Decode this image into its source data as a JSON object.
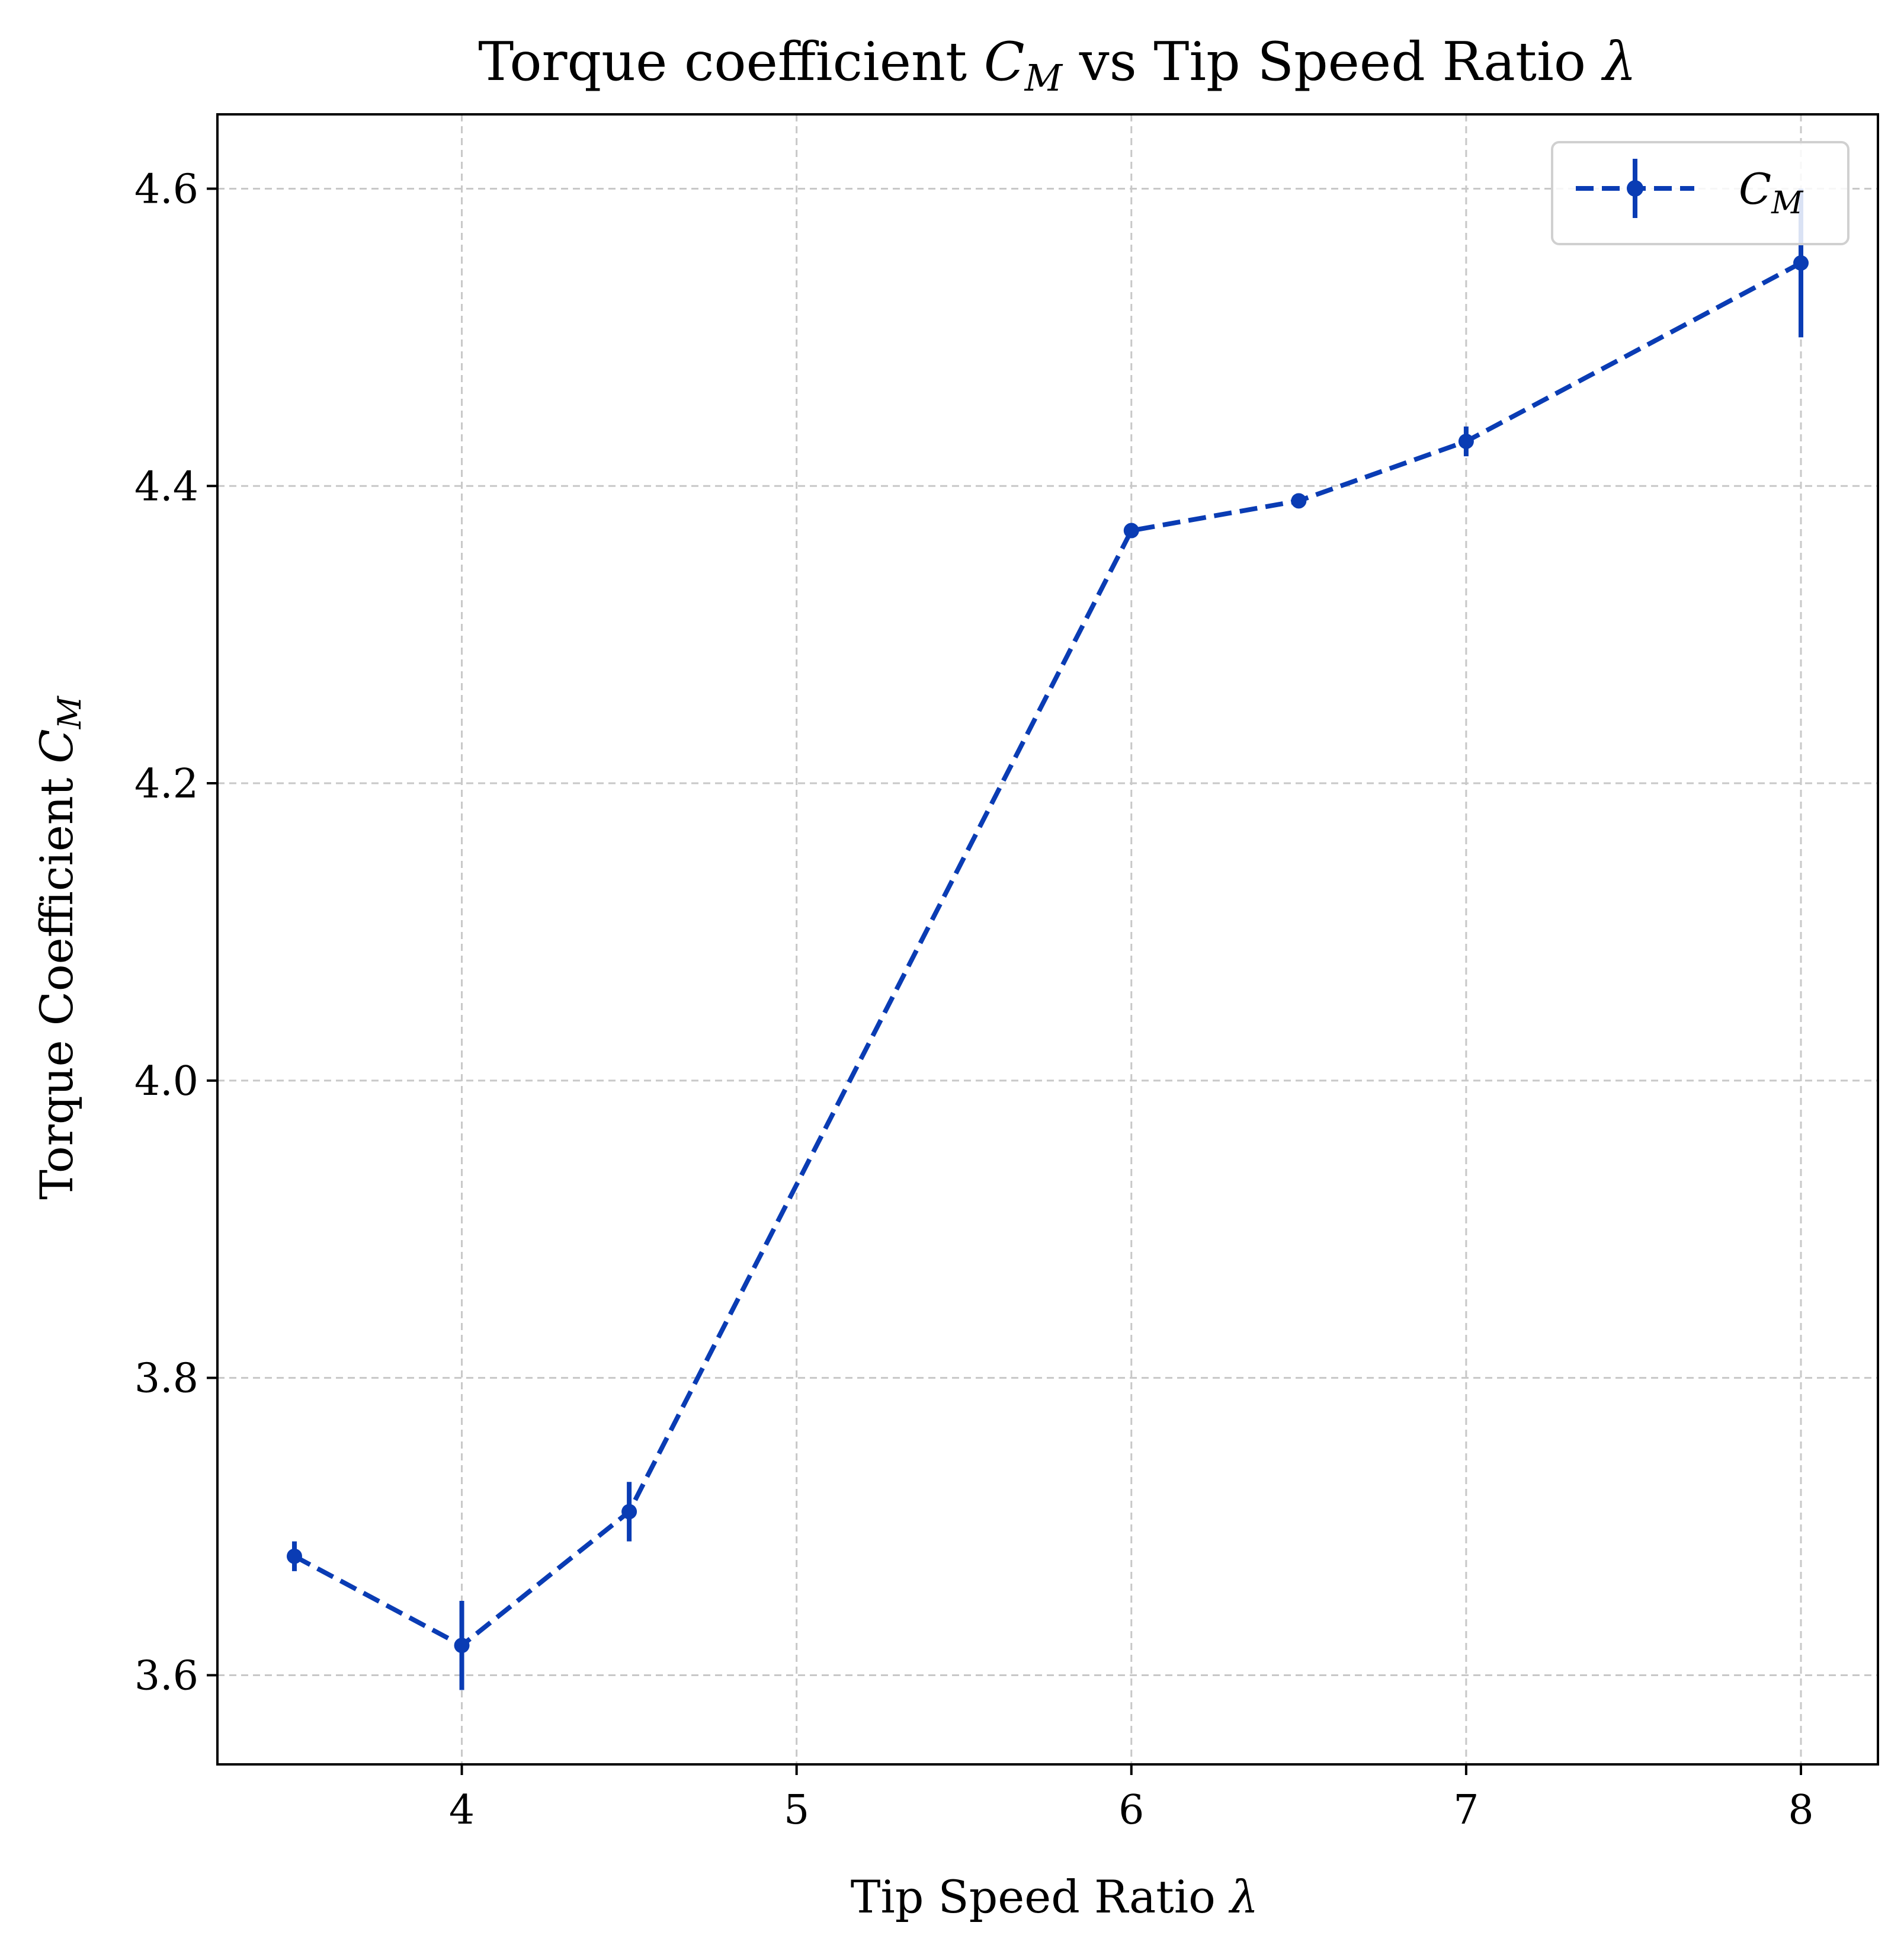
{
  "chart_data": {
    "type": "line",
    "title": "Torque coefficient C_M vs Tip Speed Ratio λ",
    "xlabel": "Tip Speed Ratio λ",
    "ylabel": "Torque Coefficient C_M",
    "xlim": [
      3.27,
      8.23
    ],
    "ylim": [
      3.54,
      4.65
    ],
    "xticks": [
      4,
      5,
      6,
      7,
      8
    ],
    "yticks": [
      3.6,
      3.8,
      4.0,
      4.2,
      4.4,
      4.6
    ],
    "grid": true,
    "legend_position": "top-right",
    "series": [
      {
        "name": "C_M",
        "color": "#0a3cb4",
        "line_style": "dashed",
        "marker": "circle",
        "x": [
          3.5,
          4.0,
          4.5,
          6.0,
          6.5,
          7.0,
          8.0
        ],
        "y": [
          3.68,
          3.62,
          3.71,
          4.37,
          4.39,
          4.43,
          4.55
        ],
        "yerr": [
          0.01,
          0.03,
          0.02,
          0.005,
          0.005,
          0.01,
          0.05
        ]
      }
    ]
  },
  "labels": {
    "title_main": "Torque coefficient ",
    "title_sym": "C",
    "title_sub": "M",
    "title_rest": " vs Tip Speed Ratio ",
    "title_lambda": "λ",
    "xlabel_main": "Tip Speed Ratio ",
    "xlabel_lambda": "λ",
    "ylabel_main": "Torque Coefficient ",
    "ylabel_sym": "C",
    "ylabel_sub": "M",
    "legend_sym": "C",
    "legend_sub": "M"
  }
}
